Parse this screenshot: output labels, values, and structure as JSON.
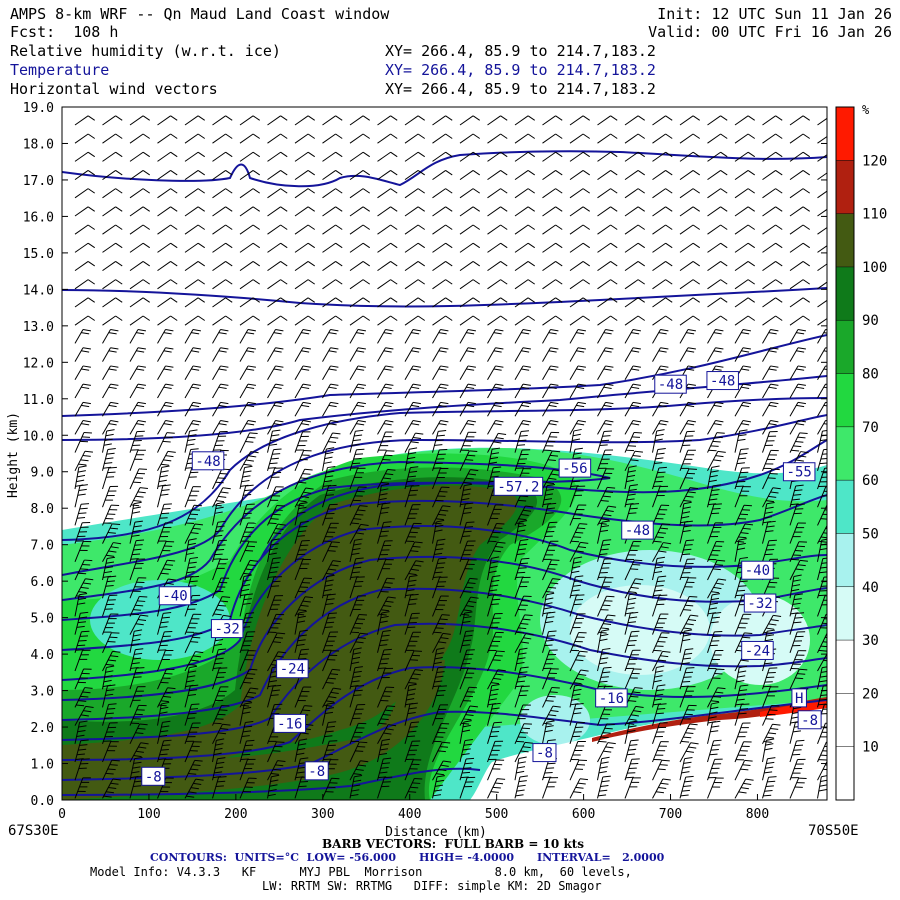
{
  "header": {
    "title": "AMPS 8-km WRF -- Qn Maud Land Coast window",
    "init": "Init: 12 UTC Sun 11 Jan 26",
    "fcst": "Fcst:  108 h",
    "valid": "Valid: 00 UTC Fri 16 Jan 26",
    "fields": [
      {
        "name": "Relative humidity (w.r.t. ice)",
        "xy": "XY= 266.4, 85.9 to 214.7,183.2",
        "color": "#000000"
      },
      {
        "name": "Temperature",
        "xy": "XY= 266.4, 85.9 to 214.7,183.2",
        "color": "#14149a"
      },
      {
        "name": "Horizontal wind vectors",
        "xy": "XY= 266.4, 85.9 to 214.7,183.2",
        "color": "#000000"
      }
    ]
  },
  "footer": {
    "left_corner": "67S30E",
    "right_corner": "70S50E",
    "barb": "BARB VECTORS:  FULL BARB = 10 kts",
    "contours": "CONTOURS:  UNITS=°C  LOW= -56.000      HIGH= -4.0000      INTERVAL=   2.0000",
    "model1": "Model Info: V4.3.3   KF      MYJ PBL  Morrison          8.0 km,  60 levels,",
    "model2": "LW: RRTM SW: RRTMG   DIFF: simple KM: 2D Smagor"
  },
  "chart_data": {
    "type": "heatmap",
    "title": "Relative humidity (w.r.t. ice) / Temperature / Horizontal wind vectors",
    "xlabel": "Distance (km)",
    "ylabel": "Height (km)",
    "xlim": [
      0,
      880
    ],
    "ylim": [
      0,
      19
    ],
    "x_ticks": [
      0,
      100,
      200,
      300,
      400,
      500,
      600,
      700,
      800
    ],
    "y_ticks": [
      "0.0",
      "1.0",
      "2.0",
      "3.0",
      "4.0",
      "5.0",
      "6.0",
      "7.0",
      "8.0",
      "9.0",
      "10.0",
      "11.0",
      "12.0",
      "13.0",
      "14.0",
      "15.0",
      "16.0",
      "17.0",
      "18.0",
      "19.0"
    ],
    "colorbar": {
      "unit": "%",
      "levels": [
        10,
        20,
        30,
        40,
        50,
        60,
        70,
        80,
        90,
        100,
        110,
        120
      ],
      "colors": [
        "#ffffff",
        "#ffffff",
        "#ffffff",
        "#d6fbf6",
        "#a8f2ee",
        "#4ee6c8",
        "#3ee86a",
        "#22d840",
        "#1aa82a",
        "#0f7a1a",
        "#435a12",
        "#b02010",
        "#ff1a00"
      ]
    },
    "contour_labels": [
      {
        "text": "-48",
        "x": 168,
        "y": 9.3
      },
      {
        "text": "-48",
        "x": 700,
        "y": 11.4
      },
      {
        "text": "-48",
        "x": 760,
        "y": 11.5
      },
      {
        "text": "-56",
        "x": 590,
        "y": 9.1
      },
      {
        "text": "-57.2",
        "x": 525,
        "y": 8.6
      },
      {
        "text": "-55",
        "x": 848,
        "y": 9.0
      },
      {
        "text": "-48",
        "x": 662,
        "y": 7.4
      },
      {
        "text": "-40",
        "x": 130,
        "y": 5.6
      },
      {
        "text": "-40",
        "x": 800,
        "y": 6.3
      },
      {
        "text": "-32",
        "x": 190,
        "y": 4.7
      },
      {
        "text": "-32",
        "x": 803,
        "y": 5.4
      },
      {
        "text": "-24",
        "x": 265,
        "y": 3.6
      },
      {
        "text": "-24",
        "x": 800,
        "y": 4.1
      },
      {
        "text": "-16",
        "x": 262,
        "y": 2.1
      },
      {
        "text": "-16",
        "x": 632,
        "y": 2.8
      },
      {
        "text": "-8",
        "x": 105,
        "y": 0.65
      },
      {
        "text": "-8",
        "x": 293,
        "y": 0.8
      },
      {
        "text": "-8",
        "x": 555,
        "y": 1.3
      },
      {
        "text": "-8",
        "x": 860,
        "y": 2.2
      },
      {
        "text": "H",
        "x": 848,
        "y": 2.8
      }
    ],
    "legend": "right colorbar"
  }
}
